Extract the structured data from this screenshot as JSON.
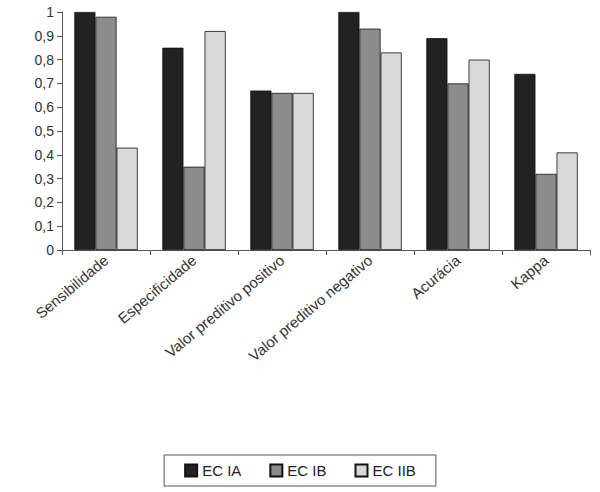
{
  "chart_data": {
    "type": "bar",
    "categories": [
      "Sensibilidade",
      "Especificidade",
      "Valor preditivo positivo",
      "Valor preditivo negativo",
      "Acurácia",
      "Kappa"
    ],
    "series": [
      {
        "name": "EC IA",
        "color": "#222222",
        "values": [
          1.0,
          0.85,
          0.67,
          1.0,
          0.89,
          0.74
        ]
      },
      {
        "name": "EC IB",
        "color": "#8c8c8c",
        "values": [
          0.98,
          0.35,
          0.66,
          0.93,
          0.7,
          0.32
        ]
      },
      {
        "name": "EC IIB",
        "color": "#d9d9d9",
        "values": [
          0.43,
          0.92,
          0.66,
          0.83,
          0.8,
          0.41
        ]
      }
    ],
    "ylim": [
      0,
      1
    ],
    "yticks": [
      0,
      {
        "value": 0.1,
        "label": "0,1"
      },
      {
        "value": 0.2,
        "label": "0,2"
      },
      {
        "value": 0.3,
        "label": "0,3"
      },
      {
        "value": 0.4,
        "label": "0,4"
      },
      {
        "value": 0.5,
        "label": "0,5"
      },
      {
        "value": 0.6,
        "label": "0,6"
      },
      {
        "value": 0.7,
        "label": "0,7"
      },
      {
        "value": 0.8,
        "label": "0,8"
      },
      {
        "value": 0.9,
        "label": "0,9"
      },
      1
    ],
    "grid": false,
    "legend": "bottom"
  }
}
